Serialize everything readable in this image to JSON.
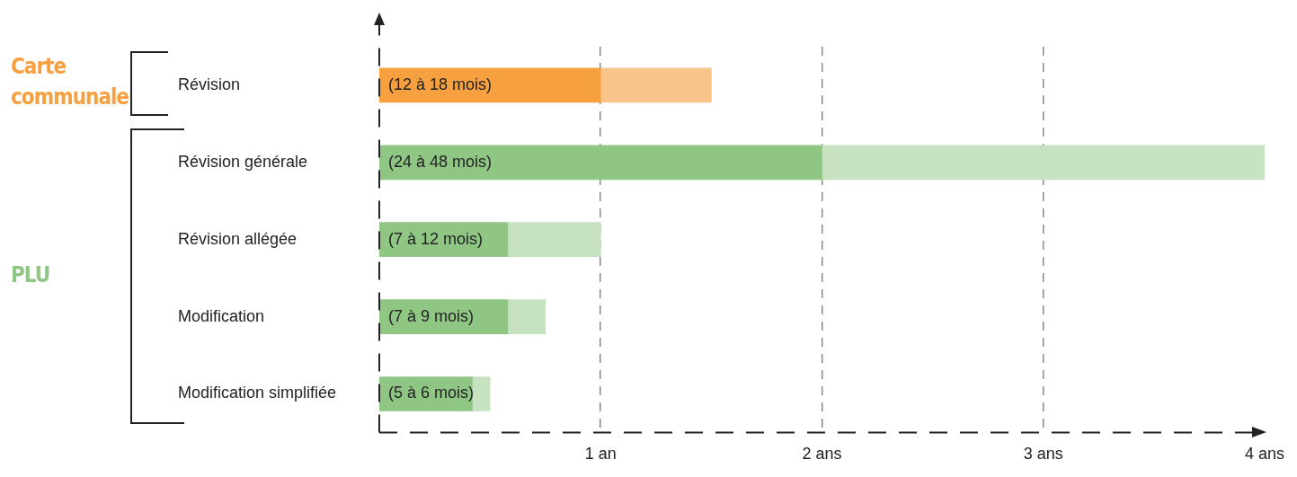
{
  "chart_data": {
    "type": "bar",
    "orientation": "horizontal",
    "stacked": true,
    "categories": [
      "Révision",
      "Révision générale",
      "Révision allégée",
      "Modification",
      "Modification simplifiée"
    ],
    "series": [
      {
        "colors": [
          "#f6a040",
          "#8fc684",
          "#8fc684",
          "#8fc684",
          "#8fc684"
        ],
        "values": [
          1,
          2,
          0.58,
          0.58,
          0.42
        ],
        "value_labels": [
          "(12 à 18 mois)",
          "(24 à 48 mois)",
          "(7 à 12 mois)",
          "(7 à 9 mois)",
          "(5 à 6 mois)"
        ]
      },
      {
        "colors": [
          "#f8c48a",
          "#c6e2c0",
          "#c6e2c0",
          "#c6e2c0",
          "#c6e2c0"
        ],
        "values": [
          0.5,
          2,
          0.42,
          0.17,
          0.08
        ]
      }
    ],
    "xlim": [
      0,
      4
    ],
    "xticks": [
      {
        "value": 1,
        "label": "1 an"
      },
      {
        "value": 2,
        "label": "2 ans"
      },
      {
        "value": 3,
        "label": "3 ans"
      },
      {
        "value": 4,
        "label": "4 ans"
      }
    ],
    "grid": "x",
    "legend": false,
    "annotations": [
      "Carte communale",
      "PLU"
    ]
  }
}
